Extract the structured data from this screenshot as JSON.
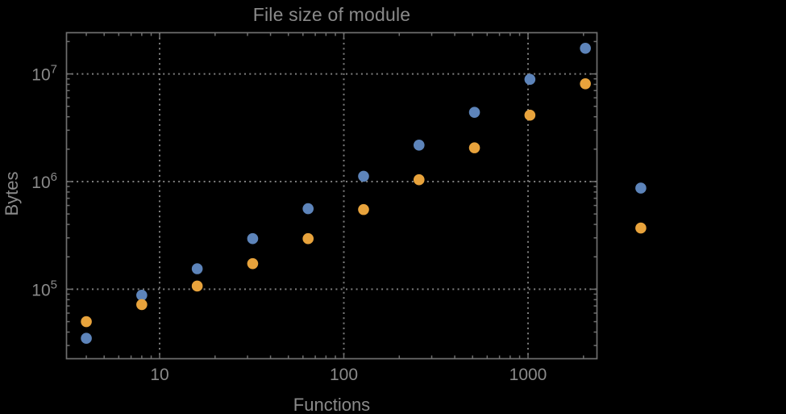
{
  "chart_data": {
    "type": "scatter",
    "title": "File size of module",
    "xlabel": "Functions",
    "ylabel": "Bytes",
    "x_scale": "log",
    "y_scale": "log",
    "xlim": [
      3.1,
      2370
    ],
    "ylim": [
      22600,
      24200000
    ],
    "grid": "dotted gray lines at powers of ten, both axes",
    "legend": "none",
    "x": [
      4,
      8,
      16,
      32,
      64,
      128,
      256,
      512,
      1024,
      2048,
      4096
    ],
    "series": [
      {
        "name": "series-blue",
        "color": "#5d84ba",
        "values": [
          35000,
          88000,
          155000,
          295000,
          560000,
          1120000,
          2180000,
          4400000,
          8900000,
          17300000,
          870000
        ]
      },
      {
        "name": "series-orange",
        "color": "#e8a33c",
        "values": [
          50000,
          72000,
          107000,
          173000,
          295000,
          550000,
          1040000,
          2060000,
          4140000,
          8100000,
          370000
        ]
      }
    ],
    "x_ticks": [
      {
        "value": 10,
        "label": "10"
      },
      {
        "value": 100,
        "label": "100"
      },
      {
        "value": 1000,
        "label": "1000"
      }
    ],
    "y_ticks": [
      {
        "value": 100000,
        "base": "10",
        "exp": "5"
      },
      {
        "value": 1000000,
        "base": "10",
        "exp": "6"
      },
      {
        "value": 10000000,
        "base": "10",
        "exp": "7"
      }
    ]
  },
  "colors": {
    "background": "#000000",
    "frame": "#6f6f6f",
    "grid": "#7d7d7d",
    "text": "#8a8a8a"
  }
}
